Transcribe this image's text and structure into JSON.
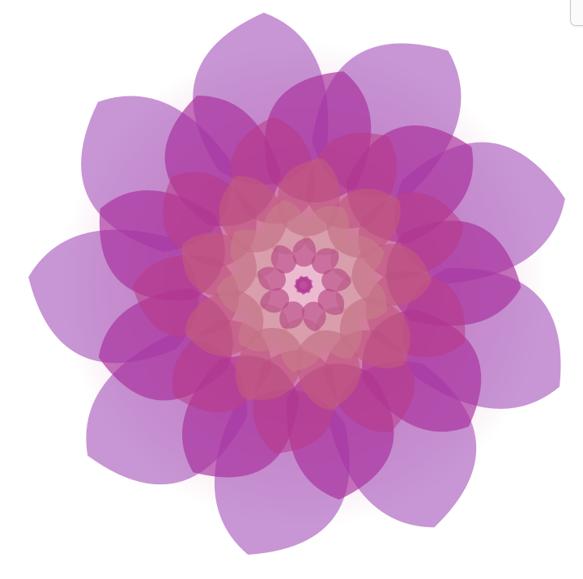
{
  "artwork": {
    "kind": "layered petal rosette",
    "ring_count": 7,
    "petals_per_ring": 9,
    "palette": {
      "outer_violet": "#9b4fb6",
      "magenta": "#b02a9a",
      "raspberry": "#c2306f",
      "rose": "#c25a86",
      "dusty_pink": "#cf8fa8",
      "peach": "#d9a08f",
      "blush": "#e0b4b8"
    },
    "ring_colors": [
      "#9b3fb0",
      "#a8309d",
      "#b83a86",
      "#c05a7e",
      "#c9818b",
      "#b84a84",
      "#a8309a"
    ]
  }
}
